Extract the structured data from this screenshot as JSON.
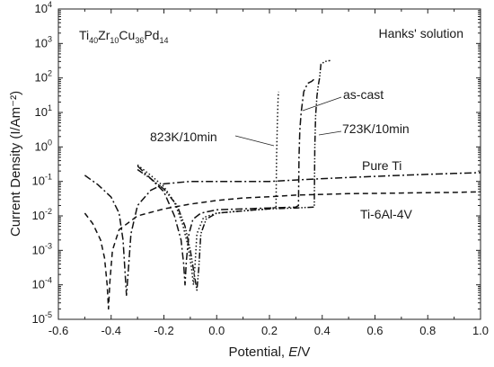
{
  "chart_data": {
    "type": "line",
    "title": "",
    "xlabel": "Potential, E/V",
    "ylabel": "Current Density (I/Am⁻²)",
    "xscale": "linear",
    "yscale": "log",
    "xlim": [
      -0.6,
      1.0
    ],
    "ylim": [
      1e-05,
      10000.0
    ],
    "x_ticks": [
      -0.6,
      -0.4,
      -0.2,
      0.0,
      0.2,
      0.4,
      0.6,
      0.8,
      1.0
    ],
    "x_tick_labels": [
      "-0.6",
      "-0.4",
      "-0.2",
      "0.0",
      "0.2",
      "0.4",
      "0.6",
      "0.8",
      "1.0"
    ],
    "y_tick_exponents": [
      -5,
      -4,
      -3,
      -2,
      -1,
      0,
      1,
      2,
      3,
      4
    ],
    "y_tick_base": "10",
    "grid": false,
    "legend": "none (series labeled inline)",
    "annotations": {
      "alloy_base": "Ti",
      "alloy_parts": [
        {
          "text": "40",
          "sub": true
        },
        {
          "text": "Zr",
          "sub": false
        },
        {
          "text": "10",
          "sub": true
        },
        {
          "text": "Cu",
          "sub": false
        },
        {
          "text": "36",
          "sub": true
        },
        {
          "text": "Pd",
          "sub": false
        },
        {
          "text": "14",
          "sub": true
        }
      ],
      "solution": "Hanks' solution"
    },
    "series": [
      {
        "name": "Pure Ti",
        "line_style": "dash-dot",
        "points": [
          [
            -0.5,
            0.15
          ],
          [
            -0.45,
            0.08
          ],
          [
            -0.4,
            0.035
          ],
          [
            -0.37,
            0.012
          ],
          [
            -0.355,
            0.002
          ],
          [
            -0.345,
            0.00012
          ],
          [
            -0.342,
            5e-05
          ],
          [
            -0.335,
            0.00025
          ],
          [
            -0.325,
            0.003
          ],
          [
            -0.3,
            0.02
          ],
          [
            -0.25,
            0.055
          ],
          [
            -0.2,
            0.085
          ],
          [
            -0.1,
            0.1
          ],
          [
            0.0,
            0.1
          ],
          [
            0.1,
            0.1
          ],
          [
            0.2,
            0.1
          ],
          [
            0.3,
            0.11
          ],
          [
            0.4,
            0.12
          ],
          [
            0.5,
            0.13
          ],
          [
            0.6,
            0.14
          ],
          [
            0.7,
            0.15
          ],
          [
            0.8,
            0.16
          ],
          [
            0.9,
            0.17
          ],
          [
            1.0,
            0.18
          ]
        ]
      },
      {
        "name": "Ti-6Al-4V",
        "line_style": "dashed",
        "points": [
          [
            -0.5,
            0.012
          ],
          [
            -0.47,
            0.006
          ],
          [
            -0.44,
            0.002
          ],
          [
            -0.425,
            0.0006
          ],
          [
            -0.415,
            0.0001
          ],
          [
            -0.41,
            2e-05
          ],
          [
            -0.405,
            0.00012
          ],
          [
            -0.395,
            0.001
          ],
          [
            -0.37,
            0.004
          ],
          [
            -0.3,
            0.01
          ],
          [
            -0.2,
            0.016
          ],
          [
            -0.1,
            0.022
          ],
          [
            0.0,
            0.028
          ],
          [
            0.1,
            0.033
          ],
          [
            0.2,
            0.036
          ],
          [
            0.3,
            0.04
          ],
          [
            0.4,
            0.042
          ],
          [
            0.5,
            0.044
          ],
          [
            0.6,
            0.045
          ],
          [
            0.7,
            0.046
          ],
          [
            0.8,
            0.047
          ],
          [
            0.9,
            0.048
          ],
          [
            1.0,
            0.05
          ]
        ]
      },
      {
        "name": "as-cast",
        "line_style": "dash-dot",
        "points": [
          [
            -0.3,
            0.28
          ],
          [
            -0.25,
            0.12
          ],
          [
            -0.2,
            0.05
          ],
          [
            -0.16,
            0.01
          ],
          [
            -0.135,
            0.002
          ],
          [
            -0.125,
            0.0004
          ],
          [
            -0.12,
            0.0001
          ],
          [
            -0.115,
            0.0005
          ],
          [
            -0.105,
            0.003
          ],
          [
            -0.09,
            0.008
          ],
          [
            -0.06,
            0.012
          ],
          [
            0.0,
            0.015
          ],
          [
            0.1,
            0.016
          ],
          [
            0.2,
            0.017
          ],
          [
            0.3,
            0.018
          ],
          [
            0.31,
            0.02
          ],
          [
            0.312,
            0.5
          ],
          [
            0.315,
            3.0
          ],
          [
            0.32,
            10
          ],
          [
            0.33,
            40
          ],
          [
            0.345,
            70
          ],
          [
            0.36,
            80
          ],
          [
            0.375,
            100
          ]
        ]
      },
      {
        "name": "723K/10min",
        "line_style": "dash-dot-dot",
        "points": [
          [
            -0.3,
            0.22
          ],
          [
            -0.25,
            0.12
          ],
          [
            -0.2,
            0.06
          ],
          [
            -0.15,
            0.02
          ],
          [
            -0.12,
            0.005
          ],
          [
            -0.1,
            0.001
          ],
          [
            -0.085,
            0.0002
          ],
          [
            -0.075,
            7e-05
          ],
          [
            -0.068,
            0.0003
          ],
          [
            -0.06,
            0.003
          ],
          [
            -0.04,
            0.008
          ],
          [
            0.0,
            0.012
          ],
          [
            0.1,
            0.014
          ],
          [
            0.2,
            0.016
          ],
          [
            0.3,
            0.017
          ],
          [
            0.37,
            0.018
          ],
          [
            0.372,
            1.0
          ],
          [
            0.375,
            8
          ],
          [
            0.38,
            30
          ],
          [
            0.385,
            60
          ],
          [
            0.39,
            100
          ],
          [
            0.395,
            250
          ],
          [
            0.41,
            300
          ],
          [
            0.43,
            320
          ]
        ]
      },
      {
        "name": "823K/10min",
        "line_style": "dotted",
        "points": [
          [
            -0.3,
            0.3
          ],
          [
            -0.25,
            0.15
          ],
          [
            -0.2,
            0.07
          ],
          [
            -0.16,
            0.025
          ],
          [
            -0.13,
            0.006
          ],
          [
            -0.11,
            0.0015
          ],
          [
            -0.095,
            0.0003
          ],
          [
            -0.088,
            0.0001
          ],
          [
            -0.082,
            0.0004
          ],
          [
            -0.075,
            0.003
          ],
          [
            -0.05,
            0.009
          ],
          [
            0.0,
            0.012
          ],
          [
            0.1,
            0.014
          ],
          [
            0.2,
            0.016
          ],
          [
            0.225,
            0.018
          ],
          [
            0.227,
            0.5
          ],
          [
            0.23,
            5
          ],
          [
            0.233,
            30
          ],
          [
            0.235,
            40
          ]
        ]
      }
    ]
  }
}
